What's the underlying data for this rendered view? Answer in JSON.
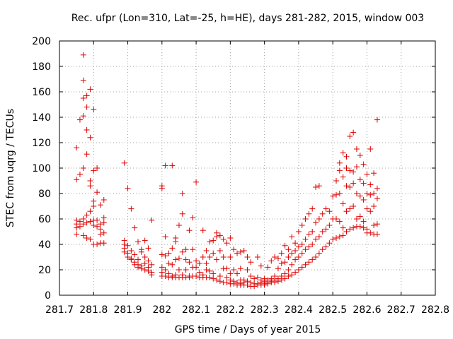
{
  "chart_data": {
    "type": "scatter",
    "title": "Rec. ufpr (Lon=310, Lat=-25, h=HE), days 281-282, 2015, window 003",
    "xlabel": "GPS time / Days of year 2015",
    "ylabel": "STEC from uqrg / TECUs",
    "xlim": [
      281.7,
      282.8
    ],
    "ylim": [
      0,
      200
    ],
    "x_ticks": [
      281.7,
      281.8,
      281.9,
      282.0,
      282.1,
      282.2,
      282.3,
      282.4,
      282.5,
      282.6,
      282.7,
      282.8
    ],
    "x_tick_labels": [
      "281.7",
      "281.8",
      "281.9",
      "282",
      "282.1",
      "282.2",
      "282.3",
      "282.4",
      "282.5",
      "282.6",
      "282.7",
      "282.8"
    ],
    "y_ticks": [
      0,
      20,
      40,
      60,
      80,
      100,
      120,
      140,
      160,
      180,
      200
    ],
    "y_tick_labels": [
      "0",
      "20",
      "40",
      "60",
      "80",
      "100",
      "120",
      "140",
      "160",
      "180",
      "200"
    ],
    "grid": true,
    "marker": "+",
    "marker_color": "#dd0000",
    "points": [
      [
        281.75,
        116
      ],
      [
        281.75,
        91
      ],
      [
        281.75,
        59
      ],
      [
        281.75,
        56
      ],
      [
        281.75,
        53
      ],
      [
        281.75,
        48
      ],
      [
        281.76,
        138
      ],
      [
        281.76,
        95
      ],
      [
        281.76,
        58
      ],
      [
        281.76,
        54
      ],
      [
        281.77,
        189
      ],
      [
        281.77,
        169
      ],
      [
        281.77,
        155
      ],
      [
        281.77,
        141
      ],
      [
        281.77,
        100
      ],
      [
        281.77,
        60
      ],
      [
        281.77,
        56
      ],
      [
        281.77,
        47
      ],
      [
        281.78,
        157
      ],
      [
        281.78,
        148
      ],
      [
        281.78,
        130
      ],
      [
        281.78,
        111
      ],
      [
        281.78,
        63
      ],
      [
        281.78,
        57
      ],
      [
        281.78,
        45
      ],
      [
        281.79,
        162
      ],
      [
        281.79,
        124
      ],
      [
        281.79,
        90
      ],
      [
        281.79,
        86
      ],
      [
        281.79,
        66
      ],
      [
        281.79,
        58
      ],
      [
        281.79,
        44
      ],
      [
        281.8,
        146
      ],
      [
        281.8,
        98
      ],
      [
        281.8,
        74
      ],
      [
        281.8,
        70
      ],
      [
        281.8,
        59
      ],
      [
        281.8,
        55
      ],
      [
        281.8,
        40
      ],
      [
        281.81,
        100
      ],
      [
        281.81,
        81
      ],
      [
        281.81,
        59
      ],
      [
        281.81,
        54
      ],
      [
        281.81,
        40
      ],
      [
        281.82,
        71
      ],
      [
        281.82,
        56
      ],
      [
        281.82,
        52
      ],
      [
        281.82,
        48
      ],
      [
        281.82,
        41
      ],
      [
        281.83,
        75
      ],
      [
        281.83,
        61
      ],
      [
        281.83,
        57
      ],
      [
        281.83,
        49
      ],
      [
        281.83,
        41
      ],
      [
        281.89,
        104
      ],
      [
        281.89,
        43
      ],
      [
        281.89,
        40
      ],
      [
        281.89,
        37
      ],
      [
        281.89,
        34
      ],
      [
        281.9,
        84
      ],
      [
        281.9,
        39
      ],
      [
        281.9,
        33
      ],
      [
        281.9,
        30
      ],
      [
        281.91,
        68
      ],
      [
        281.91,
        35
      ],
      [
        281.91,
        29
      ],
      [
        281.91,
        28
      ],
      [
        281.92,
        53
      ],
      [
        281.92,
        32
      ],
      [
        281.92,
        26
      ],
      [
        281.92,
        24
      ],
      [
        281.93,
        42
      ],
      [
        281.93,
        28
      ],
      [
        281.93,
        24
      ],
      [
        281.93,
        22
      ],
      [
        281.94,
        36
      ],
      [
        281.94,
        34
      ],
      [
        281.94,
        23
      ],
      [
        281.94,
        21
      ],
      [
        281.95,
        43
      ],
      [
        281.95,
        30
      ],
      [
        281.95,
        25
      ],
      [
        281.95,
        20
      ],
      [
        281.96,
        37
      ],
      [
        281.96,
        27
      ],
      [
        281.96,
        22
      ],
      [
        281.96,
        19
      ],
      [
        281.97,
        59
      ],
      [
        281.97,
        24
      ],
      [
        281.97,
        18
      ],
      [
        281.97,
        16
      ],
      [
        282.0,
        86
      ],
      [
        282.0,
        84
      ],
      [
        282.0,
        32
      ],
      [
        282.0,
        22
      ],
      [
        282.0,
        18
      ],
      [
        282.0,
        15
      ],
      [
        282.01,
        102
      ],
      [
        282.01,
        46
      ],
      [
        282.01,
        31
      ],
      [
        282.01,
        20
      ],
      [
        282.01,
        15
      ],
      [
        282.02,
        33
      ],
      [
        282.02,
        25
      ],
      [
        282.02,
        17
      ],
      [
        282.02,
        14
      ],
      [
        282.03,
        102
      ],
      [
        282.03,
        37
      ],
      [
        282.03,
        24
      ],
      [
        282.03,
        15
      ],
      [
        282.03,
        14
      ],
      [
        282.04,
        45
      ],
      [
        282.04,
        42
      ],
      [
        282.04,
        28
      ],
      [
        282.04,
        16
      ],
      [
        282.04,
        14
      ],
      [
        282.05,
        55
      ],
      [
        282.05,
        29
      ],
      [
        282.05,
        20
      ],
      [
        282.05,
        14
      ],
      [
        282.06,
        80
      ],
      [
        282.06,
        64
      ],
      [
        282.06,
        34
      ],
      [
        282.06,
        16
      ],
      [
        282.06,
        14
      ],
      [
        282.07,
        36
      ],
      [
        282.07,
        28
      ],
      [
        282.07,
        20
      ],
      [
        282.07,
        14
      ],
      [
        282.08,
        51
      ],
      [
        282.08,
        26
      ],
      [
        282.08,
        15
      ],
      [
        282.08,
        14
      ],
      [
        282.09,
        61
      ],
      [
        282.09,
        36
      ],
      [
        282.09,
        22
      ],
      [
        282.09,
        15
      ],
      [
        282.1,
        89
      ],
      [
        282.1,
        27
      ],
      [
        282.1,
        22
      ],
      [
        282.1,
        15
      ],
      [
        282.11,
        25
      ],
      [
        282.11,
        18
      ],
      [
        282.11,
        14
      ],
      [
        282.12,
        51
      ],
      [
        282.12,
        30
      ],
      [
        282.12,
        16
      ],
      [
        282.12,
        14
      ],
      [
        282.13,
        35
      ],
      [
        282.13,
        25
      ],
      [
        282.13,
        20
      ],
      [
        282.13,
        14
      ],
      [
        282.14,
        42
      ],
      [
        282.14,
        30
      ],
      [
        282.14,
        19
      ],
      [
        282.14,
        14
      ],
      [
        282.15,
        43
      ],
      [
        282.15,
        33
      ],
      [
        282.15,
        17
      ],
      [
        282.15,
        13
      ],
      [
        282.16,
        49
      ],
      [
        282.16,
        46
      ],
      [
        282.16,
        28
      ],
      [
        282.16,
        12
      ],
      [
        282.17,
        47
      ],
      [
        282.17,
        35
      ],
      [
        282.17,
        15
      ],
      [
        282.17,
        11
      ],
      [
        282.18,
        44
      ],
      [
        282.18,
        30
      ],
      [
        282.18,
        21
      ],
      [
        282.18,
        10
      ],
      [
        282.19,
        41
      ],
      [
        282.19,
        21
      ],
      [
        282.19,
        14
      ],
      [
        282.19,
        10
      ],
      [
        282.2,
        45
      ],
      [
        282.2,
        30
      ],
      [
        282.2,
        17
      ],
      [
        282.2,
        12
      ],
      [
        282.2,
        9
      ],
      [
        282.21,
        36
      ],
      [
        282.21,
        20
      ],
      [
        282.21,
        11
      ],
      [
        282.21,
        9
      ],
      [
        282.22,
        33
      ],
      [
        282.22,
        17
      ],
      [
        282.22,
        10
      ],
      [
        282.22,
        8
      ],
      [
        282.23,
        34
      ],
      [
        282.23,
        21
      ],
      [
        282.23,
        12
      ],
      [
        282.23,
        9
      ],
      [
        282.23,
        8
      ],
      [
        282.24,
        35
      ],
      [
        282.24,
        12
      ],
      [
        282.24,
        10
      ],
      [
        282.24,
        8
      ],
      [
        282.25,
        30
      ],
      [
        282.25,
        20
      ],
      [
        282.25,
        11
      ],
      [
        282.25,
        8
      ],
      [
        282.26,
        26
      ],
      [
        282.26,
        15
      ],
      [
        282.26,
        10
      ],
      [
        282.26,
        7
      ],
      [
        282.27,
        13
      ],
      [
        282.27,
        9
      ],
      [
        282.27,
        7
      ],
      [
        282.28,
        30
      ],
      [
        282.28,
        14
      ],
      [
        282.28,
        9
      ],
      [
        282.28,
        8
      ],
      [
        282.29,
        23
      ],
      [
        282.29,
        12
      ],
      [
        282.29,
        10
      ],
      [
        282.29,
        8
      ],
      [
        282.3,
        13
      ],
      [
        282.3,
        11
      ],
      [
        282.3,
        9
      ],
      [
        282.3,
        8
      ],
      [
        282.31,
        22
      ],
      [
        282.31,
        12
      ],
      [
        282.31,
        10
      ],
      [
        282.31,
        9
      ],
      [
        282.32,
        27
      ],
      [
        282.32,
        13
      ],
      [
        282.32,
        11
      ],
      [
        282.32,
        10
      ],
      [
        282.33,
        30
      ],
      [
        282.33,
        15
      ],
      [
        282.33,
        12
      ],
      [
        282.33,
        10
      ],
      [
        282.34,
        29
      ],
      [
        282.34,
        21
      ],
      [
        282.34,
        13
      ],
      [
        282.34,
        11
      ],
      [
        282.35,
        33
      ],
      [
        282.35,
        25
      ],
      [
        282.35,
        15
      ],
      [
        282.35,
        12
      ],
      [
        282.36,
        39
      ],
      [
        282.36,
        26
      ],
      [
        282.36,
        17
      ],
      [
        282.36,
        13
      ],
      [
        282.37,
        36
      ],
      [
        282.37,
        30
      ],
      [
        282.37,
        20
      ],
      [
        282.37,
        15
      ],
      [
        282.38,
        46
      ],
      [
        282.38,
        33
      ],
      [
        282.38,
        24
      ],
      [
        282.38,
        16
      ],
      [
        282.39,
        41
      ],
      [
        282.39,
        35
      ],
      [
        282.39,
        28
      ],
      [
        282.39,
        18
      ],
      [
        282.4,
        50
      ],
      [
        282.4,
        38
      ],
      [
        282.4,
        30
      ],
      [
        282.4,
        20
      ],
      [
        282.41,
        55
      ],
      [
        282.41,
        40
      ],
      [
        282.41,
        33
      ],
      [
        282.41,
        22
      ],
      [
        282.42,
        60
      ],
      [
        282.42,
        44
      ],
      [
        282.42,
        36
      ],
      [
        282.42,
        24
      ],
      [
        282.43,
        64
      ],
      [
        282.43,
        48
      ],
      [
        282.43,
        38
      ],
      [
        282.43,
        26
      ],
      [
        282.44,
        68
      ],
      [
        282.44,
        50
      ],
      [
        282.44,
        40
      ],
      [
        282.44,
        28
      ],
      [
        282.45,
        85
      ],
      [
        282.45,
        57
      ],
      [
        282.45,
        44
      ],
      [
        282.45,
        30
      ],
      [
        282.46,
        86
      ],
      [
        282.46,
        60
      ],
      [
        282.46,
        46
      ],
      [
        282.46,
        33
      ],
      [
        282.47,
        64
      ],
      [
        282.47,
        50
      ],
      [
        282.47,
        36
      ],
      [
        282.48,
        68
      ],
      [
        282.48,
        52
      ],
      [
        282.48,
        38
      ],
      [
        282.49,
        66
      ],
      [
        282.49,
        55
      ],
      [
        282.49,
        41
      ],
      [
        282.5,
        78
      ],
      [
        282.5,
        60
      ],
      [
        282.5,
        44
      ],
      [
        282.51,
        90
      ],
      [
        282.51,
        79
      ],
      [
        282.51,
        60
      ],
      [
        282.51,
        45
      ],
      [
        282.52,
        104
      ],
      [
        282.52,
        98
      ],
      [
        282.52,
        80
      ],
      [
        282.52,
        58
      ],
      [
        282.52,
        46
      ],
      [
        282.53,
        112
      ],
      [
        282.53,
        93
      ],
      [
        282.53,
        72
      ],
      [
        282.53,
        53
      ],
      [
        282.53,
        47
      ],
      [
        282.54,
        109
      ],
      [
        282.54,
        100
      ],
      [
        282.54,
        86
      ],
      [
        282.54,
        66
      ],
      [
        282.54,
        50
      ],
      [
        282.55,
        125
      ],
      [
        282.55,
        98
      ],
      [
        282.55,
        85
      ],
      [
        282.55,
        68
      ],
      [
        282.55,
        52
      ],
      [
        282.56,
        128
      ],
      [
        282.56,
        97
      ],
      [
        282.56,
        88
      ],
      [
        282.56,
        70
      ],
      [
        282.56,
        53
      ],
      [
        282.57,
        115
      ],
      [
        282.57,
        101
      ],
      [
        282.57,
        80
      ],
      [
        282.57,
        60
      ],
      [
        282.57,
        54
      ],
      [
        282.58,
        110
      ],
      [
        282.58,
        91
      ],
      [
        282.58,
        78
      ],
      [
        282.58,
        62
      ],
      [
        282.58,
        54
      ],
      [
        282.59,
        103
      ],
      [
        282.59,
        88
      ],
      [
        282.59,
        75
      ],
      [
        282.59,
        58
      ],
      [
        282.59,
        53
      ],
      [
        282.6,
        95
      ],
      [
        282.6,
        80
      ],
      [
        282.6,
        68
      ],
      [
        282.6,
        52
      ],
      [
        282.6,
        49
      ],
      [
        282.61,
        115
      ],
      [
        282.61,
        87
      ],
      [
        282.61,
        79
      ],
      [
        282.61,
        66
      ],
      [
        282.61,
        49
      ],
      [
        282.62,
        96
      ],
      [
        282.62,
        80
      ],
      [
        282.62,
        70
      ],
      [
        282.62,
        55
      ],
      [
        282.62,
        48
      ],
      [
        282.63,
        138
      ],
      [
        282.63,
        84
      ],
      [
        282.63,
        76
      ],
      [
        282.63,
        56
      ],
      [
        282.63,
        48
      ]
    ]
  }
}
